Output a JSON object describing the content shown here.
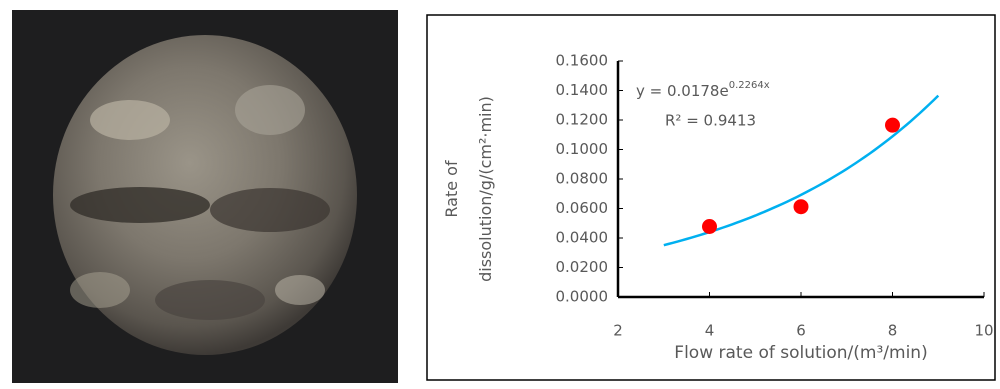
{
  "chart_data": {
    "type": "scatter",
    "x": [
      4,
      6,
      8
    ],
    "values": [
      0.0478,
      0.0612,
      0.1165
    ],
    "color": "#ff0000",
    "xlim": [
      2,
      10
    ],
    "xticks": [
      2,
      4,
      6,
      8,
      10
    ],
    "ylim": [
      0,
      0.16
    ],
    "yticks": [
      {
        "value": 0,
        "label": "0.0000"
      },
      {
        "value": 0.02,
        "label": "0.0200"
      },
      {
        "value": 0.04,
        "label": "0.0400"
      },
      {
        "value": 0.06,
        "label": "0.0600"
      },
      {
        "value": 0.08,
        "label": "0.0800"
      },
      {
        "value": 0.1,
        "label": "0.1000"
      },
      {
        "value": 0.12,
        "label": "0.1200"
      },
      {
        "value": 0.14,
        "label": "0.1400"
      },
      {
        "value": 0.16,
        "label": "0.1600"
      }
    ],
    "x_label": "Flow rate of solution/(m³/min)",
    "y_label": [
      "Rate of",
      "dissolution/g/(cm²·min)"
    ],
    "trendline": {
      "a": 0.0178,
      "b": 0.2264,
      "x_range": [
        3,
        9
      ],
      "color": "#00b0f0",
      "equation_base": "y = 0.0178e",
      "equation_exponent": "0.2264x",
      "r_squared": "R² = 0.9413"
    }
  }
}
